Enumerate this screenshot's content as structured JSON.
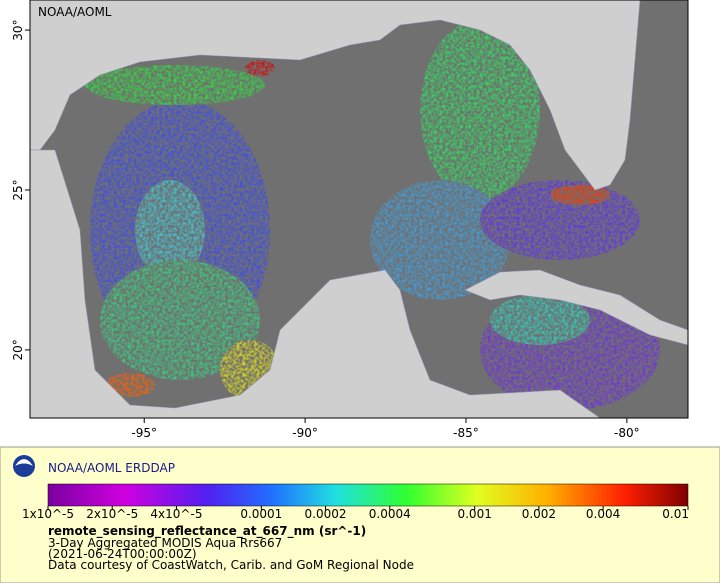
{
  "map": {
    "corner_label": "NOAA/AOML",
    "lon_range": [
      -98.55,
      -78.1
    ],
    "lat_range": [
      17.87,
      30.94
    ],
    "lat_ticks": [
      {
        "value": 30,
        "label": "30°"
      },
      {
        "value": 25,
        "label": "25°"
      },
      {
        "value": 20,
        "label": "20°"
      }
    ],
    "lon_ticks": [
      {
        "value": -95,
        "label": "-95°"
      },
      {
        "value": -90,
        "label": "-90°"
      },
      {
        "value": -85,
        "label": "-85°"
      },
      {
        "value": -80,
        "label": "-80°"
      }
    ]
  },
  "legend": {
    "title": "NOAA/AOML ERDDAP",
    "colorbar": {
      "range": [
        1e-05,
        0.01
      ],
      "log": true,
      "ticks": [
        {
          "value": 1e-05,
          "label": "1x10^-5"
        },
        {
          "value": 2e-05,
          "label": "2x10^-5"
        },
        {
          "value": 4e-05,
          "label": "4x10^-5"
        },
        0.0001,
        0.0002,
        0.0004,
        0.001,
        0.002,
        0.004,
        0.01
      ]
    },
    "variable": "remote_sensing_reflectance_at_667_nm (sr^-1)",
    "lines": [
      "3-Day Aggregated MODIS Aqua Rrs667",
      "(2021-06-24T00:00:00Z)",
      "Data courtesy of CoastWatch, Carib. and GoM Regional Node"
    ]
  }
}
